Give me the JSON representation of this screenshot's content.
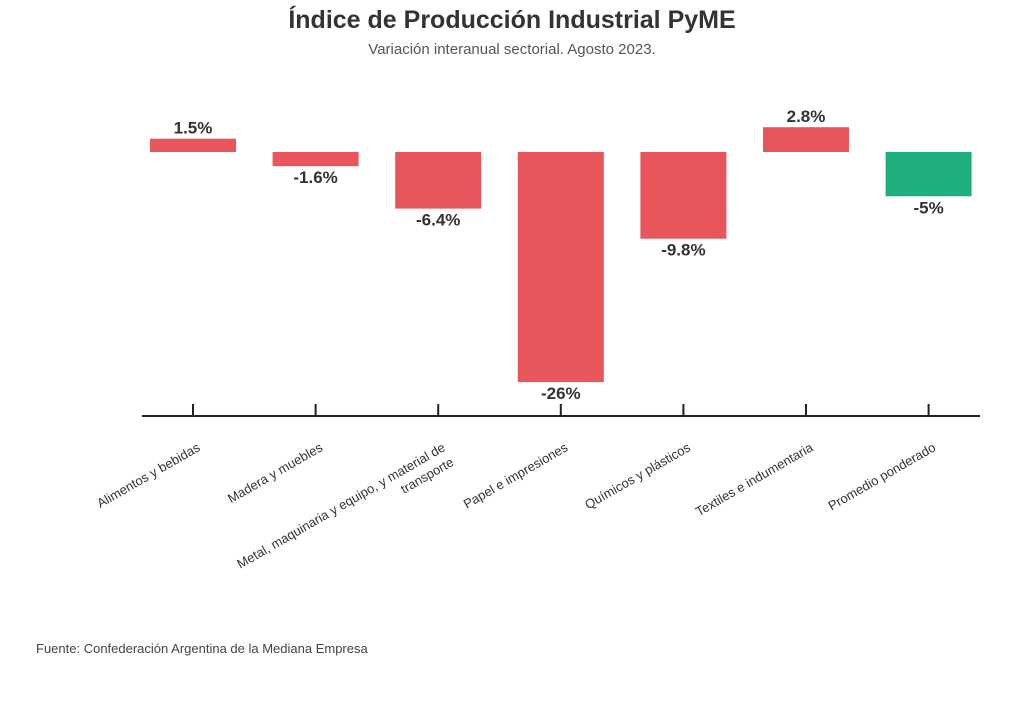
{
  "header": {
    "title": "Índice de Producción Industrial PyME",
    "subtitle": "Variación interanual sectorial. Agosto 2023."
  },
  "footer": {
    "source": "Fuente: Confederación Argentina de la Mediana Empresa"
  },
  "chart_data": {
    "type": "bar",
    "title": "Índice de Producción Industrial PyME",
    "subtitle": "Variación interanual sectorial. Agosto 2023.",
    "categories": [
      "Alimentos y bebidas",
      "Madera y muebles",
      "Metal, maquinaria y equipo, y material de transporte",
      "Papel e impresiones",
      "Químicos y plásticos",
      "Textiles e indumentaria",
      "Promedio ponderado"
    ],
    "values": [
      1.5,
      -1.6,
      -6.4,
      -26,
      -9.8,
      2.8,
      -5
    ],
    "data_labels": [
      "1.5%",
      "-1.6%",
      "-6.4%",
      "-26%",
      "-9.8%",
      "2.8%",
      "-5%"
    ],
    "colors": [
      "#e8555a",
      "#e8555a",
      "#e8555a",
      "#e8555a",
      "#e8555a",
      "#e8555a",
      "#1fae7e"
    ],
    "highlight_color": "#1fae7e",
    "bar_color": "#e8555a",
    "xlabel": "",
    "ylabel": "",
    "grid": false,
    "legend": "none"
  }
}
